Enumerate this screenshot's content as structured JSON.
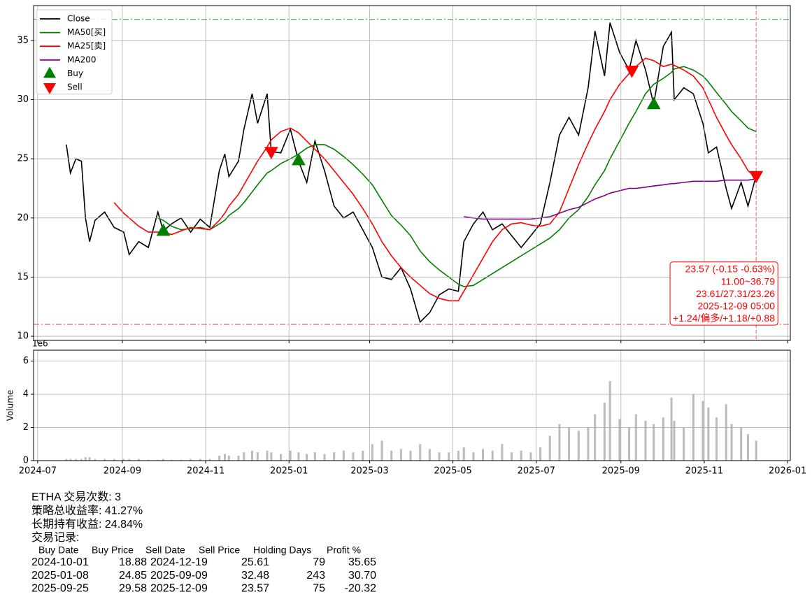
{
  "chart_data": [
    {
      "type": "line",
      "x": [
        "2024-07-22",
        "2024-07-25",
        "2024-07-29",
        "2024-08-02",
        "2024-08-05",
        "2024-08-08",
        "2024-08-12",
        "2024-08-19",
        "2024-08-26",
        "2024-09-02",
        "2024-09-06",
        "2024-09-13",
        "2024-09-20",
        "2024-09-27",
        "2024-10-01",
        "2024-10-07",
        "2024-10-14",
        "2024-10-21",
        "2024-10-28",
        "2024-11-04",
        "2024-11-11",
        "2024-11-15",
        "2024-11-18",
        "2024-11-25",
        "2024-11-29",
        "2024-12-05",
        "2024-12-09",
        "2024-12-16",
        "2024-12-19",
        "2024-12-26",
        "2025-01-02",
        "2025-01-08",
        "2025-01-14",
        "2025-01-20",
        "2025-01-27",
        "2025-02-03",
        "2025-02-10",
        "2025-02-17",
        "2025-02-24",
        "2025-03-03",
        "2025-03-10",
        "2025-03-17",
        "2025-03-24",
        "2025-03-31",
        "2025-04-07",
        "2025-04-14",
        "2025-04-21",
        "2025-04-28",
        "2025-05-05",
        "2025-05-09",
        "2025-05-16",
        "2025-05-23",
        "2025-05-30",
        "2025-06-06",
        "2025-06-13",
        "2025-06-20",
        "2025-06-27",
        "2025-07-04",
        "2025-07-11",
        "2025-07-18",
        "2025-07-25",
        "2025-08-01",
        "2025-08-08",
        "2025-08-13",
        "2025-08-20",
        "2025-08-24",
        "2025-08-31",
        "2025-09-07",
        "2025-09-12",
        "2025-09-19",
        "2025-09-25",
        "2025-10-02",
        "2025-10-08",
        "2025-10-10",
        "2025-10-17",
        "2025-10-24",
        "2025-10-31",
        "2025-11-04",
        "2025-11-10",
        "2025-11-17",
        "2025-11-21",
        "2025-11-28",
        "2025-12-03",
        "2025-12-09"
      ],
      "xlim": [
        "2024-06-28",
        "2026-01-03"
      ],
      "xticks": [
        "2024-07",
        "2024-09",
        "2024-11",
        "2025-01",
        "2025-03",
        "2025-05",
        "2025-07",
        "2025-09",
        "2025-11",
        "2026-01"
      ],
      "ylim": [
        9.65,
        37.95
      ],
      "yticks": [
        10,
        15,
        20,
        25,
        30,
        35
      ],
      "grid": true,
      "legend": "upper left",
      "series": [
        {
          "name": "Close",
          "color": "#000000",
          "values": [
            26.2,
            23.8,
            25.0,
            24.8,
            20.0,
            18.0,
            19.8,
            20.5,
            19.2,
            18.8,
            16.9,
            18.0,
            17.5,
            20.5,
            18.9,
            19.5,
            20.0,
            18.8,
            19.9,
            19.2,
            24.0,
            25.4,
            23.5,
            24.8,
            27.5,
            30.5,
            28.0,
            30.5,
            25.6,
            25.5,
            27.5,
            24.8,
            23.0,
            26.5,
            24.0,
            21.0,
            20.0,
            20.5,
            19.0,
            17.5,
            15.0,
            14.8,
            15.8,
            14.0,
            11.2,
            12.0,
            13.5,
            14.0,
            13.8,
            18.0,
            19.5,
            20.5,
            19.0,
            19.5,
            18.5,
            17.5,
            18.5,
            19.5,
            23.0,
            27.0,
            28.5,
            27.0,
            31.0,
            35.8,
            32.0,
            36.5,
            34.0,
            32.5,
            35.0,
            32.5,
            29.6,
            34.5,
            35.7,
            30.0,
            31.0,
            30.5,
            28.0,
            25.5,
            26.0,
            22.5,
            20.8,
            23.0,
            21.0,
            23.6
          ]
        },
        {
          "name": "MA50[买]",
          "color": "#008000",
          "values": [
            null,
            null,
            null,
            null,
            null,
            null,
            null,
            null,
            null,
            null,
            null,
            null,
            null,
            20.0,
            19.8,
            19.3,
            19.0,
            19.1,
            19.2,
            19.0,
            19.5,
            19.8,
            20.2,
            20.8,
            21.3,
            22.2,
            22.8,
            23.8,
            24.0,
            24.6,
            25.0,
            25.4,
            25.9,
            26.2,
            26.2,
            25.8,
            25.2,
            24.5,
            23.7,
            22.8,
            21.5,
            20.2,
            19.4,
            18.5,
            17.2,
            16.3,
            15.6,
            15.0,
            14.4,
            14.2,
            14.3,
            14.8,
            15.3,
            15.8,
            16.3,
            16.8,
            17.3,
            17.8,
            18.3,
            19.0,
            20.0,
            20.7,
            21.8,
            22.8,
            24.0,
            25.0,
            26.5,
            28.0,
            29.0,
            30.5,
            31.3,
            31.8,
            32.3,
            32.6,
            32.8,
            32.5,
            32.0,
            31.5,
            30.6,
            29.6,
            29.0,
            28.2,
            27.6,
            27.3
          ]
        },
        {
          "name": "MA25[卖]",
          "color": "#ff0000",
          "values": [
            null,
            null,
            null,
            null,
            null,
            null,
            null,
            null,
            21.3,
            20.4,
            20.0,
            19.3,
            18.8,
            18.8,
            18.8,
            18.6,
            18.9,
            19.2,
            19.1,
            19.0,
            19.8,
            20.4,
            21.0,
            22.0,
            22.8,
            24.0,
            24.8,
            26.0,
            26.6,
            27.3,
            27.6,
            27.2,
            26.5,
            25.8,
            25.0,
            24.0,
            23.0,
            22.0,
            20.8,
            19.5,
            18.0,
            16.8,
            15.8,
            15.0,
            14.3,
            13.6,
            13.2,
            13.0,
            13.0,
            13.8,
            15.2,
            16.6,
            18.0,
            19.0,
            19.5,
            19.6,
            19.4,
            19.3,
            19.5,
            20.5,
            22.5,
            24.5,
            26.3,
            27.5,
            29.0,
            30.0,
            31.3,
            32.2,
            32.8,
            33.5,
            33.3,
            32.8,
            33.0,
            32.9,
            32.5,
            32.0,
            31.0,
            30.0,
            28.5,
            27.0,
            26.2,
            25.0,
            24.0,
            23.4
          ]
        },
        {
          "name": "MA200",
          "color": "#800080",
          "values": [
            null,
            null,
            null,
            null,
            null,
            null,
            null,
            null,
            null,
            null,
            null,
            null,
            null,
            null,
            null,
            null,
            null,
            null,
            null,
            null,
            null,
            null,
            null,
            null,
            null,
            null,
            null,
            null,
            null,
            null,
            null,
            null,
            null,
            null,
            null,
            null,
            null,
            null,
            null,
            null,
            null,
            null,
            null,
            null,
            null,
            null,
            null,
            null,
            null,
            20.1,
            20.0,
            19.9,
            19.9,
            19.9,
            19.9,
            19.9,
            19.9,
            20.0,
            20.1,
            20.4,
            20.7,
            20.9,
            21.3,
            21.6,
            21.9,
            22.1,
            22.3,
            22.5,
            22.5,
            22.6,
            22.7,
            22.8,
            22.9,
            22.9,
            23.0,
            23.1,
            23.1,
            23.1,
            23.1,
            23.2,
            23.2,
            23.2,
            23.2,
            23.3
          ]
        }
      ],
      "markers": [
        {
          "name": "Buy",
          "color": "#008000",
          "symbol": "triangle-up",
          "x": [
            "2024-10-01",
            "2025-01-08",
            "2025-09-25"
          ],
          "values": [
            18.88,
            24.85,
            29.58
          ]
        },
        {
          "name": "Sell",
          "color": "#ff0000",
          "symbol": "triangle-down",
          "x": [
            "2024-12-19",
            "2025-09-09",
            "2025-12-09"
          ],
          "values": [
            25.61,
            32.48,
            23.57
          ]
        }
      ],
      "hlines": [
        {
          "value": 36.79,
          "color": "#2ca02c"
        },
        {
          "value": 11.0,
          "color": "#ff4d4d"
        }
      ],
      "vlines": [
        {
          "x": "2025-12-09",
          "color": "#ff4d4d"
        }
      ],
      "annotation": [
        "23.57 (-0.15 -0.63%)",
        "11.00~36.79",
        "23.61/27.31/23.26",
        "2025-12-09 05:00",
        "+1.24/偏多/+1.18/+0.88"
      ],
      "annotation_color": "#ff0000"
    },
    {
      "type": "bar",
      "ylabel": "Volume",
      "offset_label": "1e6",
      "color": "#bbbbbb",
      "x": [
        "2024-07-22",
        "2024-07-25",
        "2024-07-29",
        "2024-08-02",
        "2024-08-05",
        "2024-08-08",
        "2024-08-12",
        "2024-08-19",
        "2024-08-26",
        "2024-09-02",
        "2024-09-06",
        "2024-09-13",
        "2024-09-20",
        "2024-09-27",
        "2024-10-01",
        "2024-10-07",
        "2024-10-14",
        "2024-10-21",
        "2024-10-28",
        "2024-11-04",
        "2024-11-11",
        "2024-11-15",
        "2024-11-18",
        "2024-11-25",
        "2024-11-29",
        "2024-12-05",
        "2024-12-09",
        "2024-12-16",
        "2024-12-19",
        "2024-12-26",
        "2025-01-02",
        "2025-01-08",
        "2025-01-14",
        "2025-01-20",
        "2025-01-27",
        "2025-02-03",
        "2025-02-10",
        "2025-02-17",
        "2025-02-24",
        "2025-03-03",
        "2025-03-10",
        "2025-03-17",
        "2025-03-24",
        "2025-03-31",
        "2025-04-07",
        "2025-04-14",
        "2025-04-21",
        "2025-04-28",
        "2025-05-05",
        "2025-05-09",
        "2025-05-16",
        "2025-05-23",
        "2025-05-30",
        "2025-06-06",
        "2025-06-13",
        "2025-06-20",
        "2025-06-27",
        "2025-07-04",
        "2025-07-11",
        "2025-07-18",
        "2025-07-25",
        "2025-08-01",
        "2025-08-08",
        "2025-08-13",
        "2025-08-20",
        "2025-08-24",
        "2025-08-31",
        "2025-09-07",
        "2025-09-12",
        "2025-09-19",
        "2025-09-25",
        "2025-10-02",
        "2025-10-08",
        "2025-10-10",
        "2025-10-17",
        "2025-10-24",
        "2025-10-31",
        "2025-11-04",
        "2025-11-10",
        "2025-11-17",
        "2025-11-21",
        "2025-11-28",
        "2025-12-03",
        "2025-12-09"
      ],
      "values": [
        0.1,
        0.1,
        0.1,
        0.1,
        0.2,
        0.2,
        0.1,
        0.1,
        0.1,
        0.1,
        0.1,
        0.1,
        0.05,
        0.05,
        0.1,
        0.05,
        0.05,
        0.1,
        0.1,
        0.1,
        0.3,
        0.4,
        0.3,
        0.3,
        0.5,
        0.6,
        0.5,
        0.6,
        0.5,
        0.4,
        0.6,
        0.5,
        0.4,
        0.5,
        0.4,
        0.5,
        0.6,
        0.5,
        0.6,
        1.0,
        1.2,
        0.6,
        0.7,
        0.6,
        1.0,
        0.7,
        0.5,
        0.5,
        0.6,
        0.8,
        0.5,
        0.7,
        0.6,
        1.0,
        0.5,
        0.6,
        0.5,
        0.8,
        1.5,
        2.2,
        2.0,
        1.8,
        2.0,
        2.8,
        3.5,
        4.8,
        2.5,
        2.0,
        2.8,
        2.4,
        2.2,
        2.6,
        3.8,
        2.4,
        2.0,
        4.0,
        3.6,
        3.2,
        2.6,
        3.4,
        2.2,
        2.0,
        1.6,
        1.2
      ],
      "xlim": [
        "2024-06-28",
        "2026-01-03"
      ],
      "xticks": [
        "2024-07",
        "2024-09",
        "2024-11",
        "2025-01",
        "2025-03",
        "2025-05",
        "2025-07",
        "2025-09",
        "2025-11",
        "2026-01"
      ],
      "ylim": [
        0,
        6.66
      ],
      "yticks": [
        0,
        2,
        4,
        6
      ],
      "grid": true
    }
  ],
  "report": {
    "lines": [
      "ETHA 交易次数: 3",
      "策略总收益率: 41.27%",
      "长期持有收益: 24.84%",
      "交易记录:"
    ],
    "table": {
      "columns": [
        "Buy Date",
        "Buy Price",
        "Sell Date",
        "Sell Price",
        "Holding Days",
        "Profit %"
      ],
      "rows": [
        [
          "2024-10-01",
          "18.88",
          "2024-12-19",
          "25.61",
          "79",
          "35.65"
        ],
        [
          "2025-01-08",
          "24.85",
          "2025-09-09",
          "32.48",
          "243",
          "30.70"
        ],
        [
          "2025-09-25",
          "29.58",
          "2025-12-09",
          "23.57",
          "75",
          "-20.32"
        ]
      ]
    }
  }
}
